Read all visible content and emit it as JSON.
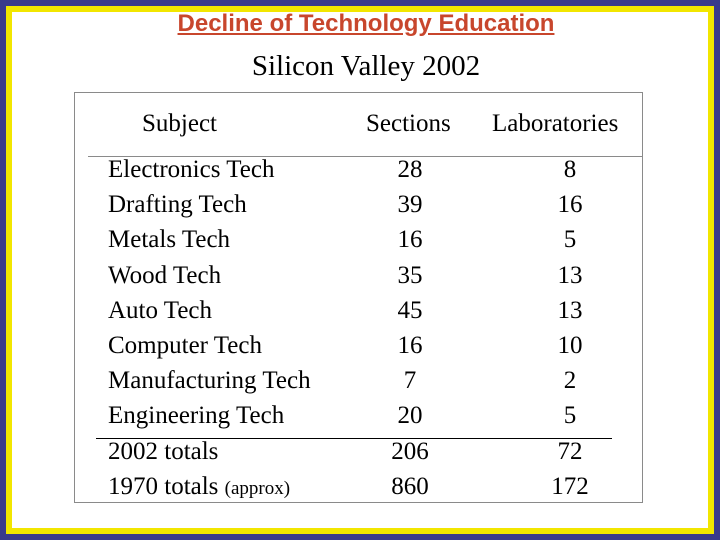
{
  "title": "Decline of Technology Education",
  "subtitle": "Silicon Valley 2002",
  "headers": {
    "subject": "Subject",
    "sections": "Sections",
    "labs": "Laboratories"
  },
  "rows": [
    {
      "subject": "Electronics Tech",
      "sections": "28",
      "labs": "8"
    },
    {
      "subject": "Drafting Tech",
      "sections": "39",
      "labs": "16"
    },
    {
      "subject": "Metals Tech",
      "sections": "16",
      "labs": "5"
    },
    {
      "subject": "Wood Tech",
      "sections": "35",
      "labs": "13"
    },
    {
      "subject": "Auto Tech",
      "sections": "45",
      "labs": "13"
    },
    {
      "subject": "Computer Tech",
      "sections": "16",
      "labs": "10"
    },
    {
      "subject": "Manufacturing Tech",
      "sections": "7",
      "labs": "2"
    },
    {
      "subject": "Engineering Tech",
      "sections": "20",
      "labs": "5"
    }
  ],
  "totals": [
    {
      "subject": "2002 totals",
      "note": "",
      "sections": "206",
      "labs": "72"
    },
    {
      "subject": "1970 totals",
      "note": "(approx)",
      "sections": "860",
      "labs": "172"
    }
  ],
  "colors": {
    "frame_outer": "#3a3a8c",
    "frame_inner": "#f2e600",
    "title": "#c8462c"
  }
}
